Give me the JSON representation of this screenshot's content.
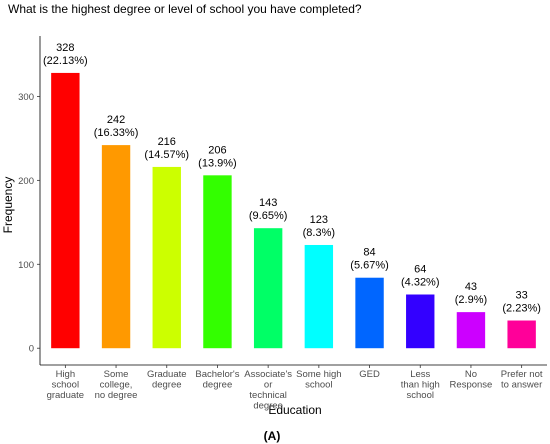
{
  "chart_data": {
    "type": "bar",
    "title": "What is the highest degree or level of school you have completed?",
    "x_label": "Education",
    "y_label": "Frequency",
    "caption": "(A)",
    "categories": [
      [
        "High",
        "school",
        "graduate"
      ],
      [
        "Some",
        "college,",
        "no degree"
      ],
      [
        "Graduate",
        "degree"
      ],
      [
        "Bachelor's",
        "degree"
      ],
      [
        "Associate's",
        "or",
        "technical",
        "degree"
      ],
      [
        "Some high",
        "school"
      ],
      [
        "GED"
      ],
      [
        "Less",
        "than high",
        "school"
      ],
      [
        "No",
        "Response"
      ],
      [
        "Prefer not",
        "to answer"
      ]
    ],
    "values": [
      328,
      242,
      216,
      206,
      143,
      123,
      84,
      64,
      43,
      33
    ],
    "value_labels": [
      [
        "328",
        "(22.13%)"
      ],
      [
        "242",
        "(16.33%)"
      ],
      [
        "216",
        "(14.57%)"
      ],
      [
        "206",
        "(13.9%)"
      ],
      [
        "143",
        "(9.65%)"
      ],
      [
        "123",
        "(8.3%)"
      ],
      [
        "84",
        "(5.67%)"
      ],
      [
        "64",
        "(4.32%)"
      ],
      [
        "43",
        "(2.9%)"
      ],
      [
        "33",
        "(2.23%)"
      ]
    ],
    "colors": [
      "#ff0000",
      "#ff9900",
      "#ccff00",
      "#33ff00",
      "#00ff66",
      "#00ffff",
      "#0066ff",
      "#3300ff",
      "#cc00ff",
      "#ff0099"
    ],
    "ylim": [
      -20,
      372
    ],
    "yticks": [
      0,
      100,
      200,
      300
    ],
    "grid": false
  }
}
